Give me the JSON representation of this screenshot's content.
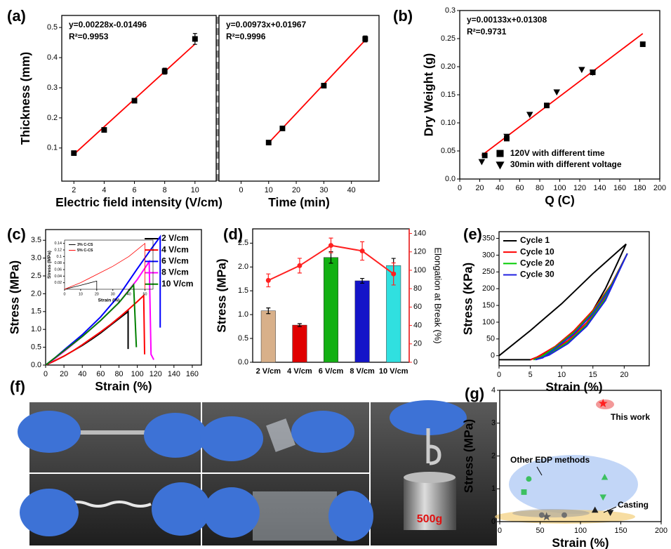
{
  "photo_panel": {
    "panel_label": "(f)",
    "weight_label": "500g"
  },
  "chart_data": [
    {
      "type": "scatter",
      "panel_label": "(a)",
      "xlabel": "Electric field intensity (V/cm)",
      "ylabel": "Thickness (mm)",
      "equation": "y=0.00228x-0.01496",
      "r_squared": "R²=0.9953",
      "x": [
        2,
        4,
        6,
        8,
        10
      ],
      "values": [
        0.083,
        0.16,
        0.257,
        0.355,
        0.462
      ],
      "errors": [
        0.004,
        0.003,
        0.003,
        0.01,
        0.018
      ],
      "marker": "square",
      "color": "#000000",
      "fit": {
        "x": [
          2,
          10
        ],
        "values": [
          0.079,
          0.445
        ],
        "color": "#ff0000"
      },
      "xlim": [
        1.2,
        11.4
      ],
      "xticks": [
        2,
        4,
        6,
        8,
        10
      ],
      "ylim": [
        -0.01,
        0.54
      ],
      "yticks": [
        0.1,
        0.2,
        0.3,
        0.4,
        0.5
      ]
    },
    {
      "type": "scatter",
      "xlabel": "Time (min)",
      "equation": "y=0.00973x+0.01967",
      "r_squared": "R²=0.9996",
      "x": [
        10,
        15,
        30,
        45
      ],
      "values": [
        0.118,
        0.165,
        0.307,
        0.462
      ],
      "errors": [
        0.003,
        0.003,
        0.008,
        0.01
      ],
      "marker": "square",
      "color": "#000000",
      "fit": {
        "x": [
          10,
          45
        ],
        "values": [
          0.117,
          0.458
        ],
        "color": "#ff0000"
      },
      "xlim": [
        -8,
        50
      ],
      "xticks": [
        0,
        10,
        20,
        30,
        40
      ],
      "ylim": [
        -0.01,
        0.54
      ]
    },
    {
      "type": "scatter",
      "panel_label": "(b)",
      "xlabel": "Q (C)",
      "ylabel": "Dry Weight (g)",
      "equation": "y=0.00133x+0.01308",
      "r_squared": "R²=0.9731",
      "legend": "lower right",
      "series": [
        {
          "name": "120V with different time",
          "marker": "square",
          "color": "#000000",
          "x": [
            25,
            47,
            87,
            133,
            183
          ],
          "values": [
            0.042,
            0.072,
            0.131,
            0.19,
            0.24
          ]
        },
        {
          "name": "30min with different voltage",
          "marker": "triangle-down",
          "color": "#000000",
          "x": [
            22,
            47,
            70,
            97,
            122,
            133
          ],
          "values": [
            0.031,
            0.076,
            0.115,
            0.155,
            0.195,
            0.19
          ]
        }
      ],
      "fit": {
        "x": [
          22,
          183
        ],
        "values": [
          0.042,
          0.259
        ],
        "color": "#ff0000"
      },
      "xlim": [
        0,
        200
      ],
      "xticks": [
        0,
        20,
        40,
        60,
        80,
        100,
        120,
        140,
        160,
        180,
        200
      ],
      "ylim": [
        0,
        0.3
      ],
      "yticks": [
        {
          "value": 0,
          "label": "0.0"
        },
        0.05,
        {
          "value": 0.1,
          "label": "0.10"
        },
        0.15,
        {
          "value": 0.2,
          "label": "0.20"
        },
        0.25,
        0.3
      ]
    },
    {
      "type": "line",
      "panel_label": "(c)",
      "xlabel": "Strain (%)",
      "ylabel": "Stress (MPa)",
      "legend": "upper right",
      "series": [
        {
          "name": "2 V/cm",
          "color": "#000000",
          "x": [
            0,
            10,
            20,
            30,
            40,
            50,
            60,
            70,
            80,
            90,
            90
          ],
          "values": [
            0,
            0.12,
            0.25,
            0.4,
            0.55,
            0.72,
            0.9,
            1.1,
            1.3,
            1.5,
            0.45
          ]
        },
        {
          "name": "4 V/cm",
          "color": "#ff0000",
          "x": [
            0,
            10,
            20,
            30,
            40,
            50,
            60,
            70,
            80,
            90,
            100,
            107,
            108
          ],
          "values": [
            0,
            0.12,
            0.25,
            0.4,
            0.57,
            0.75,
            0.93,
            1.12,
            1.33,
            1.55,
            1.78,
            1.95,
            0.3
          ]
        },
        {
          "name": "6 V/cm",
          "color": "#0000ff",
          "x": [
            0,
            10,
            20,
            40,
            60,
            80,
            100,
            115,
            125,
            125
          ],
          "values": [
            0,
            0.2,
            0.42,
            0.85,
            1.35,
            1.95,
            2.7,
            3.25,
            3.6,
            1.05
          ]
        },
        {
          "name": "8 V/cm",
          "color": "#ff00ff",
          "x": [
            0,
            10,
            20,
            40,
            60,
            80,
            100,
            113,
            115,
            117,
            118
          ],
          "values": [
            0,
            0.18,
            0.38,
            0.8,
            1.25,
            1.75,
            2.4,
            2.9,
            0.3,
            0.2,
            0.15
          ]
        },
        {
          "name": "10 V/cm",
          "color": "#008000",
          "x": [
            0,
            10,
            20,
            40,
            60,
            80,
            96,
            99
          ],
          "values": [
            0,
            0.2,
            0.4,
            0.8,
            1.25,
            1.75,
            2.25,
            0.5
          ]
        }
      ],
      "xlim": [
        0,
        170
      ],
      "xticks": [
        0,
        20,
        40,
        60,
        80,
        100,
        120,
        140,
        160
      ],
      "ylim": [
        0,
        3.8
      ],
      "yticks": [
        {
          "value": 0,
          "label": "0.0"
        },
        0.5,
        {
          "value": 1,
          "label": "1.0"
        },
        1.5,
        {
          "value": 2,
          "label": "2.0"
        },
        2.5,
        {
          "value": 3,
          "label": "3.0"
        },
        3.5
      ]
    },
    {
      "type": "line",
      "xlabel": "Strain (%)",
      "ylabel": "Stress (MPa)",
      "legend": "upper left",
      "series": [
        {
          "name": "3% C-CS",
          "color": "#000000",
          "x": [
            0,
            10,
            20,
            20
          ],
          "values": [
            0,
            0.012,
            0.025,
            0
          ]
        },
        {
          "name": "5% C-CS",
          "color": "#ff0000",
          "x": [
            0,
            10,
            20,
            30,
            40,
            50,
            50
          ],
          "values": [
            0,
            0.02,
            0.045,
            0.07,
            0.1,
            0.14,
            0
          ]
        }
      ],
      "xlim": [
        0,
        55
      ],
      "xticks": [
        0,
        10,
        20,
        30,
        40,
        50
      ],
      "ylim": [
        0,
        0.15
      ],
      "yticks": [
        0.02,
        0.04,
        0.06,
        0.08,
        0.1,
        0.12,
        0.14
      ]
    },
    {
      "type": "bar",
      "panel_label": "(d)",
      "ylabel": "Stress (MPa)",
      "y2label": "Elongation at Break (%)",
      "categories": [
        "2 V/cm",
        "4 V/cm",
        "6 V/cm",
        "8 V/cm",
        "10 V/cm"
      ],
      "series": [
        {
          "type": "bar",
          "values": [
            1.08,
            0.78,
            2.2,
            1.71,
            2.03
          ],
          "errors": [
            0.06,
            0.03,
            0.12,
            0.05,
            0.15
          ],
          "colors": [
            "#d8b08a",
            "#e00000",
            "#12b012",
            "#1414c8",
            "#30e0e0"
          ]
        },
        {
          "type": "line",
          "axis": "y2",
          "color": "#ff2020",
          "values": [
            89,
            105,
            127,
            121,
            96
          ],
          "errors": [
            7,
            8,
            8,
            10,
            12
          ]
        }
      ],
      "ylim": [
        0,
        2.8
      ],
      "yticks": [
        {
          "value": 0,
          "label": "0.0"
        },
        0.5,
        {
          "value": 1,
          "label": "1.0"
        },
        1.5,
        {
          "value": 2,
          "label": "2.0"
        },
        2.5
      ],
      "y2lim": [
        0,
        145
      ],
      "y2ticks": [
        0,
        20,
        40,
        60,
        80,
        100,
        120,
        140
      ]
    },
    {
      "type": "line",
      "panel_label": "(e)",
      "xlabel": "Strain (%)",
      "ylabel": "Stress (KPa)",
      "legend": "upper left",
      "series": [
        {
          "name": "Cycle 1",
          "color": "#000000",
          "x": [
            0,
            5,
            10,
            15,
            20.3,
            19,
            17,
            15,
            12,
            9,
            6,
            5,
            0
          ],
          "values": [
            0,
            75,
            155,
            245,
            333,
            280,
            200,
            135,
            70,
            25,
            -5,
            -12,
            -12
          ]
        },
        {
          "name": "Cycle 10",
          "color": "#ff0000",
          "x": [
            5,
            8,
            11,
            14,
            17,
            20.5,
            18,
            15,
            12,
            9,
            6,
            5
          ],
          "values": [
            -12,
            8,
            45,
            98,
            175,
            305,
            215,
            135,
            75,
            28,
            -5,
            -12
          ]
        },
        {
          "name": "Cycle 20",
          "color": "#00cc00",
          "x": [
            5.5,
            8,
            11,
            14,
            17,
            20.5,
            18,
            15,
            12,
            9,
            6.5,
            5.5
          ],
          "values": [
            -12,
            5,
            40,
            92,
            170,
            305,
            212,
            130,
            70,
            25,
            -6,
            -12
          ]
        },
        {
          "name": "Cycle 30",
          "color": "#2020e0",
          "x": [
            5.8,
            8,
            11,
            14,
            17,
            20.5,
            18,
            15,
            12,
            9,
            7,
            5.8
          ],
          "values": [
            -12,
            2,
            36,
            88,
            165,
            305,
            208,
            126,
            66,
            22,
            -6,
            -12
          ]
        }
      ],
      "xlim": [
        0,
        24
      ],
      "xticks": [
        0,
        5,
        10,
        15,
        20
      ],
      "ylim": [
        -30,
        370
      ],
      "yticks": [
        0,
        50,
        100,
        150,
        200,
        250,
        300,
        350
      ]
    },
    {
      "type": "scatter",
      "panel_label": "(g)",
      "xlabel": "Strain (%)",
      "ylabel": "Stress (MPa)",
      "annotations": [
        "This work",
        "Other EDP methods",
        "Casting"
      ],
      "series": [
        {
          "marker": "star",
          "color": "#ff2020",
          "x": [
            128
          ],
          "values": [
            3.6
          ]
        },
        {
          "marker": "circle",
          "color": "#3cc060",
          "x": [
            36
          ],
          "values": [
            1.3
          ]
        },
        {
          "marker": "square",
          "color": "#3cc060",
          "x": [
            30
          ],
          "values": [
            0.9
          ]
        },
        {
          "marker": "triangle",
          "color": "#3cc060",
          "x": [
            130
          ],
          "values": [
            1.35
          ]
        },
        {
          "marker": "triangle-down",
          "color": "#3cc060",
          "x": [
            128
          ],
          "values": [
            0.75
          ]
        },
        {
          "marker": "triangle",
          "color": "#222222",
          "x": [
            118
          ],
          "values": [
            0.35
          ]
        },
        {
          "marker": "triangle-down",
          "color": "#222222",
          "x": [
            137
          ],
          "values": [
            0.28
          ]
        },
        {
          "marker": "star",
          "color": "#606060",
          "x": [
            58
          ],
          "values": [
            0.15
          ]
        },
        {
          "marker": "circle",
          "color": "#707070",
          "x": [
            52,
            80
          ],
          "values": [
            0.2,
            0.2
          ]
        }
      ],
      "xlim": [
        0,
        200
      ],
      "xticks": [
        0,
        50,
        100,
        150,
        200
      ],
      "ylim": [
        0,
        4
      ],
      "yticks": [
        0,
        1,
        2,
        3,
        4
      ]
    }
  ]
}
